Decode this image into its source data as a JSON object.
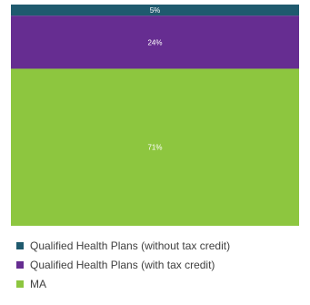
{
  "chart_data": {
    "type": "bar",
    "stacked": true,
    "orientation": "vertical",
    "categories": [
      ""
    ],
    "series": [
      {
        "name": "MA",
        "values": [
          71
        ],
        "label": "71%",
        "color": "#8DC63F"
      },
      {
        "name": "Qualified Health Plans (with tax credit)",
        "values": [
          24
        ],
        "label": "24%",
        "color": "#662D91"
      },
      {
        "name": "Qualified Health Plans (without tax credit)",
        "values": [
          5
        ],
        "label": "5%",
        "color": "#1F5A6E"
      }
    ],
    "ylim": [
      0,
      100
    ],
    "grid": false,
    "legend_position": "bottom"
  },
  "legend": {
    "items": [
      {
        "label": "Qualified Health Plans (without tax credit)",
        "color": "#1F5A6E"
      },
      {
        "label": "Qualified Health Plans (with tax credit)",
        "color": "#662D91"
      },
      {
        "label": "MA",
        "color": "#8DC63F"
      }
    ]
  }
}
